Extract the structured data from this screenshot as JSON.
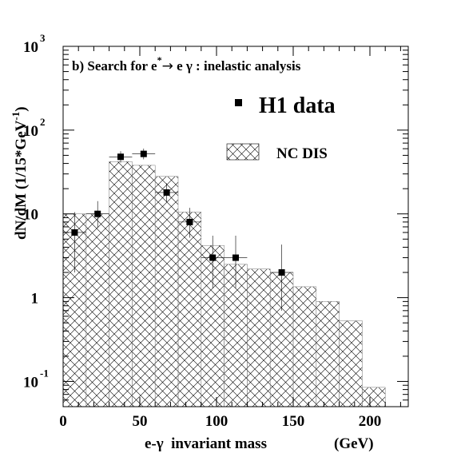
{
  "chart_data": {
    "type": "bar",
    "title": "b) Search for e* → e γ : inelastic analysis",
    "title_parts": {
      "lead": "b) Search for e",
      "sup": "*",
      "arrow": "→",
      "rest": " e γ : inelastic analysis"
    },
    "xlabel": "e-γ  invariant mass",
    "xunit": "(GeV)",
    "ylabel": "dN/dM (1/15*GeV",
    "ylabel_sup": "-1",
    "ylabel_close": ")",
    "xlim": [
      0,
      225
    ],
    "ylim": [
      0.05,
      1000
    ],
    "yscale": "log",
    "xticks": [
      0,
      50,
      100,
      150,
      200
    ],
    "xtick_labels": [
      "0",
      "50",
      "100",
      "150",
      "200"
    ],
    "yticks": [
      {
        "value": 0.1,
        "base": "10",
        "exp": "-1"
      },
      {
        "value": 1,
        "base": "1",
        "exp": ""
      },
      {
        "value": 10,
        "base": "10",
        "exp": ""
      },
      {
        "value": 100,
        "base": "10",
        "exp": "2"
      },
      {
        "value": 1000,
        "base": "10",
        "exp": "3"
      }
    ],
    "legend": [
      {
        "label": "H1 data",
        "marker": "square"
      },
      {
        "label": "NC DIS",
        "marker": "hatched-box"
      }
    ],
    "legend_position": "top-right",
    "background_series": {
      "name": "NC DIS",
      "bin_edges": [
        0,
        15,
        30,
        45,
        60,
        75,
        90,
        105,
        120,
        135,
        150,
        165,
        180,
        195,
        210
      ],
      "values": [
        10,
        10,
        42,
        38,
        28,
        10.5,
        4.2,
        2.5,
        2.2,
        2.0,
        1.35,
        0.9,
        0.53,
        0.085
      ]
    },
    "data_series": {
      "name": "H1 data",
      "x": [
        7.5,
        22.5,
        37.5,
        52.5,
        67.5,
        82.5,
        97.5,
        112.5,
        142.5
      ],
      "y": [
        6,
        10,
        48,
        52,
        18,
        8,
        3,
        3,
        2
      ],
      "y_err_low": [
        4,
        3.2,
        7,
        7.2,
        4.2,
        2.8,
        1.7,
        1.7,
        1.3
      ],
      "y_err_high": [
        4.5,
        4.2,
        8,
        8.2,
        5.2,
        3.8,
        2.5,
        2.5,
        2.3
      ],
      "x_err": 7.5
    },
    "colors": {
      "axis": "#000000",
      "hatch": "#000000",
      "marker": "#000000"
    }
  }
}
